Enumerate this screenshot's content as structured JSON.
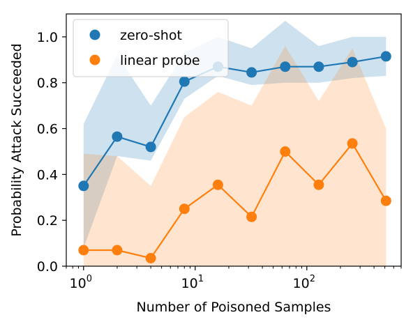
{
  "chart_data": {
    "type": "line",
    "title": "",
    "xlabel": "Number of Poisoned Samples",
    "ylabel": "Probability Attack Succeeded",
    "x_scale": "log",
    "x": [
      1,
      2,
      4,
      8,
      16,
      32,
      64,
      128,
      256,
      512
    ],
    "xlim": [
      0.7,
      700
    ],
    "ylim": [
      0.0,
      1.1
    ],
    "x_ticks": [
      {
        "value": 1,
        "base": "10",
        "exp": "0"
      },
      {
        "value": 10,
        "base": "10",
        "exp": "1"
      },
      {
        "value": 100,
        "base": "10",
        "exp": "2"
      }
    ],
    "y_ticks": [
      {
        "value": 0.0,
        "label": "0.0"
      },
      {
        "value": 0.2,
        "label": "0.2"
      },
      {
        "value": 0.4,
        "label": "0.4"
      },
      {
        "value": 0.6,
        "label": "0.6"
      },
      {
        "value": 0.8,
        "label": "0.8"
      },
      {
        "value": 1.0,
        "label": "1.0"
      }
    ],
    "legend_position": "top-left",
    "grid": false,
    "series": [
      {
        "name": "zero-shot",
        "color": "#1f77b4",
        "values": [
          0.35,
          0.565,
          0.52,
          0.805,
          0.87,
          0.845,
          0.87,
          0.87,
          0.89,
          0.915
        ],
        "band_lower": [
          0.08,
          0.48,
          0.46,
          0.73,
          0.83,
          0.79,
          0.8,
          0.8,
          0.82,
          0.83
        ],
        "band_upper": [
          0.62,
          0.92,
          0.7,
          0.93,
          1.0,
          0.95,
          1.07,
          0.96,
          1.0,
          1.0
        ]
      },
      {
        "name": "linear probe",
        "color": "#ff7f0e",
        "values": [
          0.07,
          0.07,
          0.035,
          0.25,
          0.355,
          0.215,
          0.5,
          0.355,
          0.535,
          0.285
        ],
        "band_lower": [
          0.0,
          0.0,
          0.0,
          0.0,
          0.0,
          0.0,
          0.0,
          0.0,
          0.0,
          0.0
        ],
        "band_upper": [
          0.49,
          0.48,
          0.35,
          0.65,
          0.76,
          0.7,
          0.96,
          0.72,
          0.95,
          0.6
        ]
      }
    ]
  }
}
